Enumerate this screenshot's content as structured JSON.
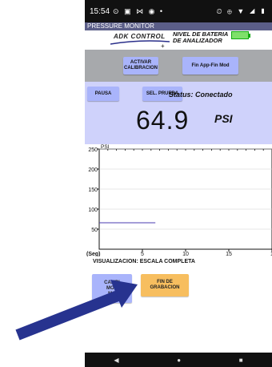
{
  "statusbar": {
    "time": "15:54",
    "left_icons": "⊙ ▣ ⋈ ◉ •",
    "right_icons": "⏲ ⊕ ▼ ◢ ▮"
  },
  "app": {
    "title": "PRESSURE MONITOR"
  },
  "header": {
    "logo_text": "ADK CONTROL",
    "battery_label_line1": "NIVEL DE BATERIA",
    "battery_label_line2": "DE ANALIZADOR",
    "battery_level_fraction": 1.0,
    "crosshair": "+"
  },
  "calibration": {
    "activate_label_line1": "ACTIVAR",
    "activate_label_line2": "CALIBRACION",
    "fin_app_label": "Fin App-Fin Mod"
  },
  "controls": {
    "pause_label": "PAUSA",
    "select_test_label": "SEL. PRUEBA",
    "status_text": "Status: Conectado",
    "pressure_value": "64.9",
    "pressure_unit": "PSI"
  },
  "chart_data": {
    "type": "line",
    "ylabel": "PSI",
    "xlabel": "(Seg)",
    "x_ticks": [
      "5",
      "10",
      "15",
      "1"
    ],
    "y_ticks": [
      "250",
      "200",
      "150",
      "100",
      "50"
    ],
    "ylim": [
      0,
      250
    ],
    "xlim": [
      0,
      20
    ],
    "series": [
      {
        "x": [
          0,
          6.5
        ],
        "y": [
          66,
          66
        ],
        "color": "#4b3bb0"
      }
    ]
  },
  "visualization_label": "VISUALIZACION: ESCALA COMPLETA",
  "bottom_buttons": {
    "change_mode_line1": "CAMBI",
    "change_mode_line2": "MOD",
    "change_mode_line3": "MO",
    "fin_grab_line1": "FIN DE",
    "fin_grab_line2": "GRABACION"
  },
  "navbar": {
    "back": "◀",
    "home": "●",
    "recents": "■"
  },
  "colors": {
    "title_bg": "#5b5e88",
    "panel_bg": "#cfd2fb",
    "button_bg": "#a9b4fb",
    "fin_grab_bg": "#f7be5f",
    "arrow": "#27338f"
  }
}
